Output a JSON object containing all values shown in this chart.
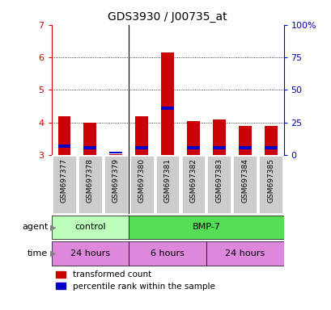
{
  "title": "GDS3930 / J00735_at",
  "samples": [
    "GSM697377",
    "GSM697378",
    "GSM697379",
    "GSM697380",
    "GSM697381",
    "GSM697382",
    "GSM697383",
    "GSM697384",
    "GSM697385"
  ],
  "red_tops": [
    4.2,
    4.0,
    3.02,
    4.2,
    6.15,
    4.05,
    4.1,
    3.9,
    3.9
  ],
  "blue_tops": [
    3.32,
    3.28,
    3.1,
    3.28,
    4.5,
    3.28,
    3.28,
    3.28,
    3.28
  ],
  "blue_bottoms": [
    3.22,
    3.18,
    3.04,
    3.18,
    4.4,
    3.18,
    3.18,
    3.18,
    3.18
  ],
  "bar_bottom": 3.0,
  "ylim_left": [
    3.0,
    7.0
  ],
  "ylim_right": [
    0,
    100
  ],
  "yticks_left": [
    3,
    4,
    5,
    6,
    7
  ],
  "yticks_right": [
    0,
    25,
    50,
    75,
    100
  ],
  "yticklabels_right": [
    "0",
    "25",
    "50",
    "75",
    "100%"
  ],
  "agent_groups": [
    {
      "label": "control",
      "start": 0,
      "end": 3,
      "color": "#bbffbb"
    },
    {
      "label": "BMP-7",
      "start": 3,
      "end": 9,
      "color": "#55dd55"
    }
  ],
  "time_groups": [
    {
      "label": "24 hours",
      "start": 0,
      "end": 3,
      "color": "#dd88dd"
    },
    {
      "label": "6 hours",
      "start": 3,
      "end": 6,
      "color": "#dd88dd"
    },
    {
      "label": "24 hours",
      "start": 6,
      "end": 9,
      "color": "#dd88dd"
    }
  ],
  "red_color": "#cc0000",
  "blue_color": "#0000cc",
  "left_tick_color": "#cc0000",
  "right_tick_color": "#0000cc",
  "bar_width": 0.5,
  "legend_red": "transformed count",
  "legend_blue": "percentile rank within the sample",
  "agent_label": "agent",
  "time_label": "time",
  "background_color": "white",
  "ticklabel_bg": "#cccccc",
  "ticklabel_fontsize": 6.5,
  "title_fontsize": 10
}
